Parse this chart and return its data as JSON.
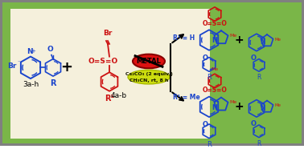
{
  "outer_bg": "#808080",
  "green_bg": "#7ab648",
  "inner_bg": "#f5f0dc",
  "blue": "#1a44cc",
  "red": "#cc1111",
  "red2": "#dd2222",
  "figsize": [
    3.78,
    1.86
  ],
  "dpi": 100,
  "label_3ah": "3a-h",
  "label_4ab": "4a-b",
  "condition1": "Cs₂CO₃ (2 equiv.)",
  "condition2": "CH₃CN, rt, 8 h",
  "metal_label": "METAL",
  "r1h_label": "R¹ = H",
  "r1me_label": "R¹ = Me"
}
